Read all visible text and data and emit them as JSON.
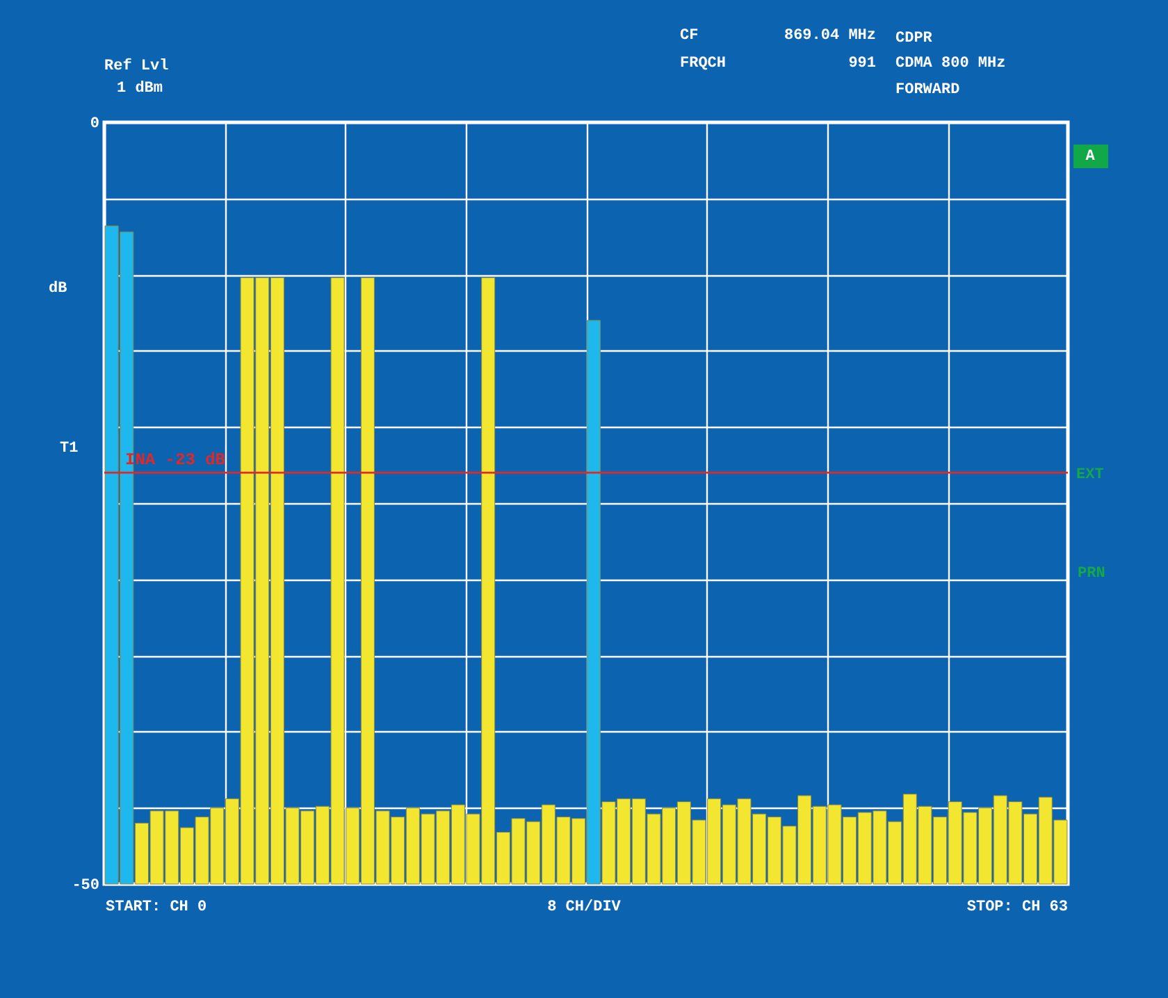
{
  "chart_data": {
    "type": "bar",
    "ylabel": "dB",
    "categories": [
      null,
      null,
      null,
      null,
      null,
      null,
      null,
      null,
      null,
      null,
      null,
      null,
      null,
      null,
      null,
      null,
      null,
      null,
      null,
      null,
      null,
      null,
      null,
      null,
      null,
      null,
      null,
      null,
      null,
      null,
      null,
      null,
      null,
      null,
      null,
      null,
      null,
      null,
      null,
      null,
      null,
      null,
      null,
      null,
      null,
      null,
      null,
      null,
      null,
      null,
      null,
      null,
      null,
      null,
      null,
      null,
      null,
      null,
      null,
      null,
      null,
      null,
      null,
      null
    ],
    "values": [
      43.2,
      42.8,
      4.0,
      4.8,
      4.8,
      3.7,
      4.4,
      5.0,
      5.6,
      39.8,
      39.8,
      39.8,
      5.0,
      4.8,
      5.1,
      39.8,
      5.0,
      39.8,
      4.8,
      4.4,
      5.0,
      4.6,
      4.8,
      5.2,
      4.6,
      39.8,
      3.4,
      4.3,
      4.1,
      5.2,
      4.4,
      4.3,
      37.0,
      5.4,
      5.6,
      5.6,
      4.6,
      5.0,
      5.4,
      4.2,
      5.6,
      5.2,
      5.6,
      4.6,
      4.4,
      3.8,
      5.8,
      5.1,
      5.2,
      4.4,
      4.7,
      4.8,
      4.1,
      5.9,
      5.1,
      4.4,
      5.4,
      4.7,
      5.0,
      5.8,
      5.4,
      4.6,
      5.7,
      4.2
    ],
    "base": [
      -50,
      -50,
      -50,
      -50,
      -50,
      -50,
      -50,
      -50,
      -50,
      -50,
      -50,
      -50,
      -50,
      -50,
      -50,
      -50,
      -50,
      -50,
      -50,
      -50,
      -50,
      -50,
      -50,
      -50,
      -50,
      -50,
      -50,
      -50,
      -50,
      -50,
      -50,
      -50,
      -50,
      -50,
      -50,
      -50,
      -50,
      -50,
      -50,
      -50,
      -50,
      -50,
      -50,
      -50,
      -50,
      -50,
      -50,
      -50,
      -50,
      -50,
      -50,
      -50,
      -50,
      -50,
      -50,
      -50,
      -50,
      -50,
      -50,
      -50,
      -50,
      -50,
      -50,
      -50
    ],
    "colors": [
      "#1fb8ee",
      "#1fb8ee",
      "#f2e630",
      "#f2e630",
      "#f2e630",
      "#f2e630",
      "#f2e630",
      "#f2e630",
      "#f2e630",
      "#f2e630",
      "#f2e630",
      "#f2e630",
      "#f2e630",
      "#f2e630",
      "#f2e630",
      "#f2e630",
      "#f2e630",
      "#f2e630",
      "#f2e630",
      "#f2e630",
      "#f2e630",
      "#f2e630",
      "#f2e630",
      "#f2e630",
      "#f2e630",
      "#f2e630",
      "#f2e630",
      "#f2e630",
      "#f2e630",
      "#f2e630",
      "#f2e630",
      "#f2e630",
      "#1fb8ee",
      "#f2e630",
      "#f2e630",
      "#f2e630",
      "#f2e630",
      "#f2e630",
      "#f2e630",
      "#f2e630",
      "#f2e630",
      "#f2e630",
      "#f2e630",
      "#f2e630",
      "#f2e630",
      "#f2e630",
      "#f2e630",
      "#f2e630",
      "#f2e630",
      "#f2e630",
      "#f2e630",
      "#f2e630",
      "#f2e630",
      "#f2e630",
      "#f2e630",
      "#f2e630",
      "#f2e630",
      "#f2e630",
      "#f2e630",
      "#f2e630",
      "#f2e630",
      "#f2e630",
      "#f2e630",
      "#f2e630"
    ],
    "ylim": [
      -50,
      0
    ],
    "yticks": [
      0,
      {
        "value": -5,
        "label": null
      },
      {
        "value": -10,
        "label": null
      },
      {
        "value": -15,
        "label": null
      },
      {
        "value": -20,
        "label": null
      },
      {
        "value": -25,
        "label": null
      },
      {
        "value": -30,
        "label": null
      },
      {
        "value": -35,
        "label": null
      },
      {
        "value": -40,
        "label": null
      },
      {
        "value": -45,
        "label": null
      },
      -50
    ],
    "grid": true,
    "tick_labels": "y",
    "ref_lines": [
      {
        "axis": "y",
        "value": -23,
        "label": "INA -23 dB",
        "color": "#e02828"
      }
    ],
    "annotations": [
      "Ref Lvl",
      "1 dBm",
      "CF",
      "869.04 MHz",
      "FRQCH",
      "991",
      "CDPR",
      "CDMA 800 MHz",
      "FORWARD",
      "T1",
      "A",
      "EXT",
      "PRN",
      "START: CH 0",
      "8 CH/DIV",
      "STOP: CH 63"
    ]
  }
}
